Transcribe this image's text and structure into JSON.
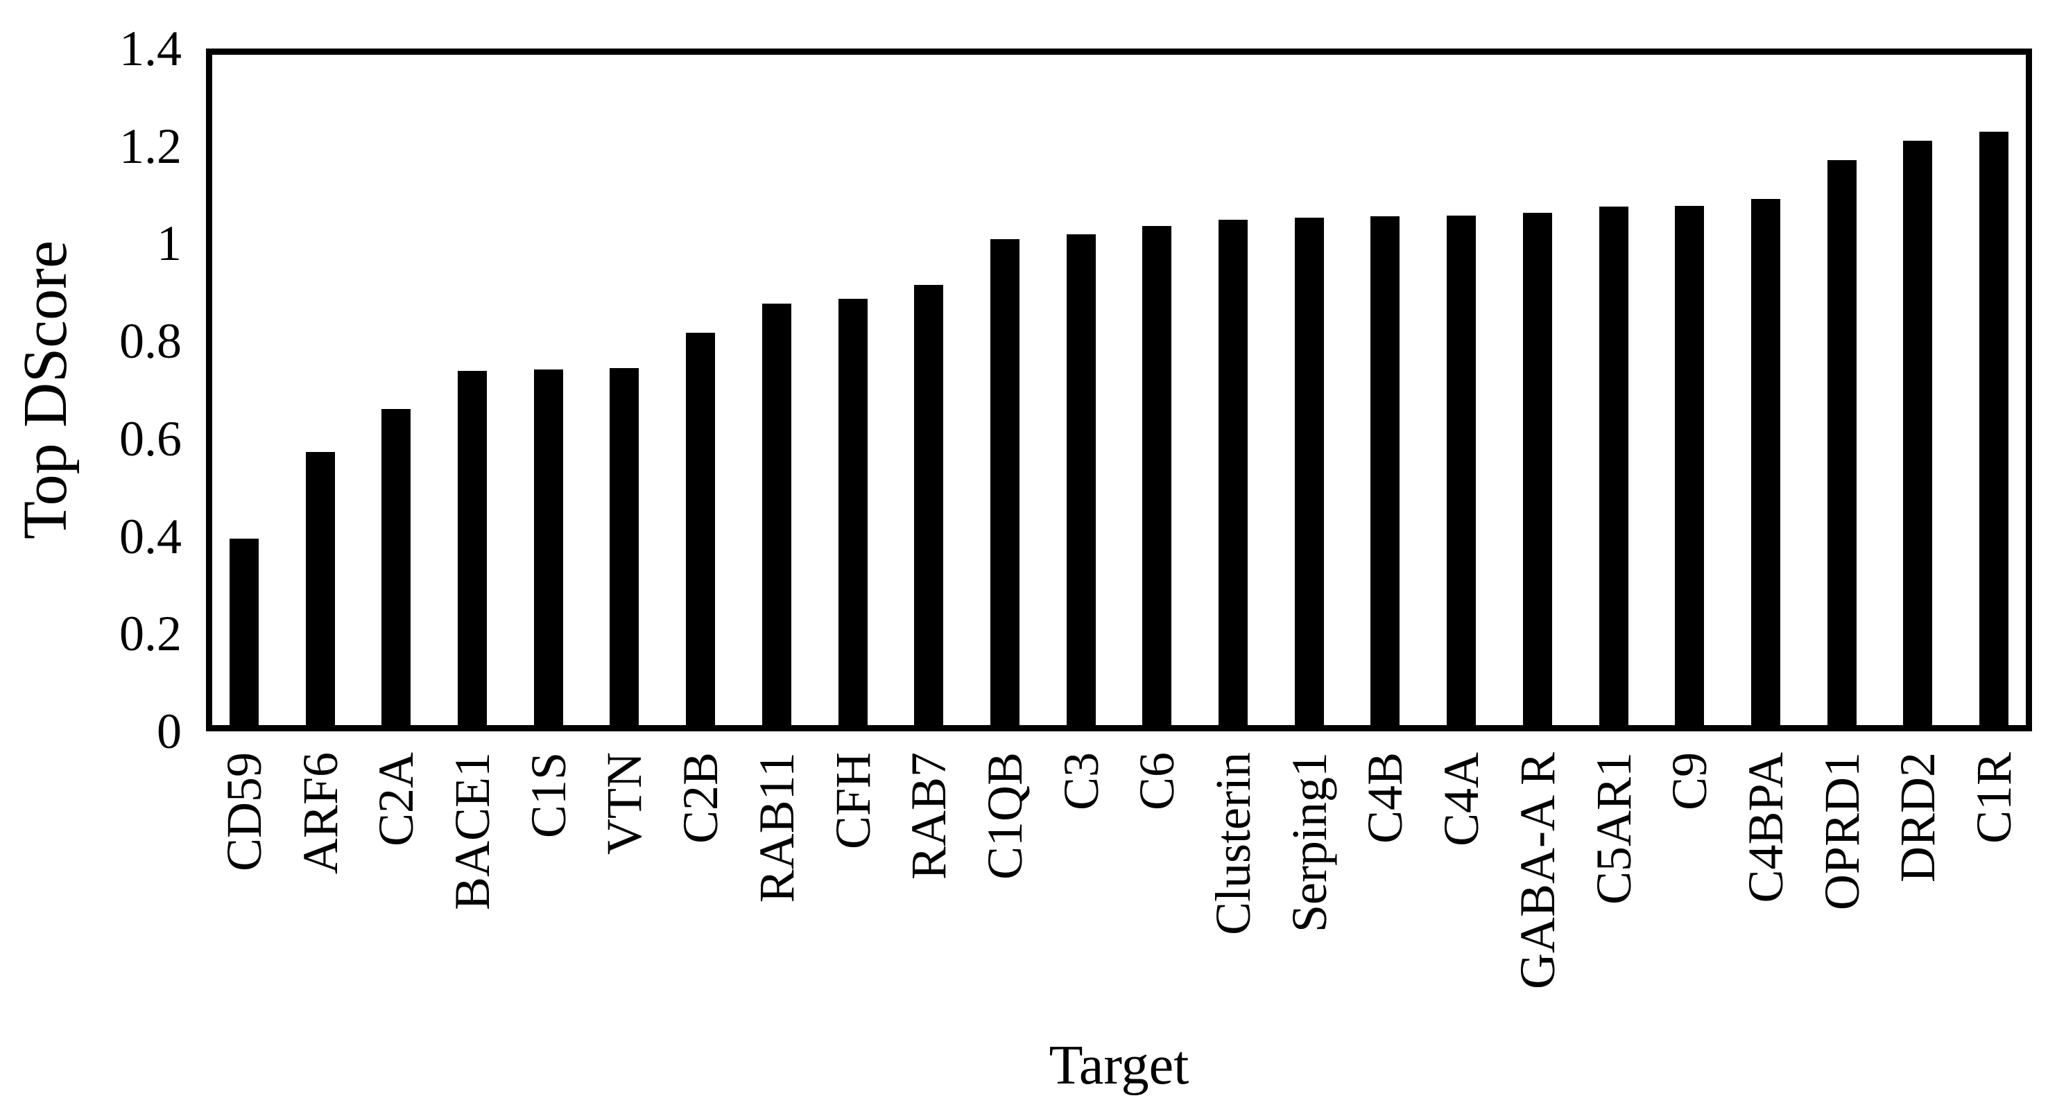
{
  "chart_data": {
    "type": "bar",
    "title": "",
    "xlabel": "Target",
    "ylabel": "Top DScore",
    "categories": [
      "CD59",
      "ARF6",
      "C2A",
      "BACE1",
      "C1S",
      "VTN",
      "C2B",
      "RAB11",
      "CFH",
      "RAB7",
      "C1QB",
      "C3",
      "C6",
      "Clusterin",
      "Serping1",
      "C4B",
      "C4A",
      "GABA-A R",
      "C5AR1",
      "C9",
      "C4BPA",
      "OPRD1",
      "DRD2",
      "C1R"
    ],
    "values": [
      0.39,
      0.57,
      0.66,
      0.74,
      0.743,
      0.745,
      0.82,
      0.88,
      0.89,
      0.92,
      1.015,
      1.025,
      1.043,
      1.056,
      1.06,
      1.062,
      1.064,
      1.07,
      1.083,
      1.085,
      1.099,
      1.18,
      1.22,
      1.24
    ],
    "ylim": [
      0,
      1.4
    ],
    "yticks": [
      0,
      0.2,
      0.4,
      0.6,
      0.8,
      1,
      1.2,
      1.4
    ],
    "ytick_labels": [
      "0",
      "0.2",
      "0.4",
      "0.6",
      "0.8",
      "1",
      "1.2",
      "1.4"
    ],
    "bar_color": "#000000",
    "axis_color": "#000000",
    "grid": "off",
    "legend": "none"
  }
}
